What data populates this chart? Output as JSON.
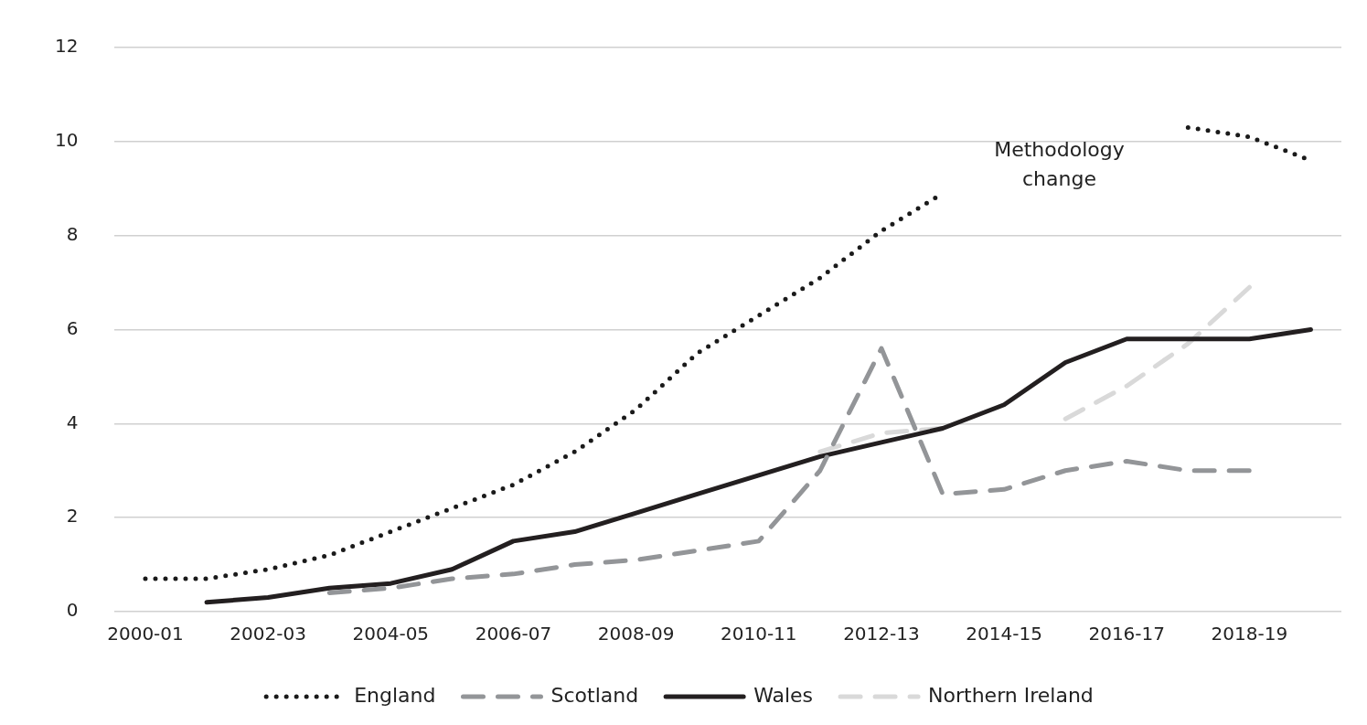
{
  "chart_data": {
    "type": "line",
    "categories": [
      "2000-01",
      null,
      "2002-03",
      null,
      "2004-05",
      null,
      "2006-07",
      null,
      "2008-09",
      null,
      "2010-11",
      null,
      "2012-13",
      null,
      "2014-15",
      null,
      "2016-17",
      null,
      "2018-19",
      null
    ],
    "series": [
      {
        "name": "England",
        "color": "#1a1a1a",
        "line_style": "dotted",
        "values": [
          0.7,
          0.7,
          0.9,
          1.2,
          1.7,
          2.2,
          2.7,
          3.4,
          4.3,
          5.5,
          6.3,
          7.1,
          8.1,
          8.9,
          null,
          null,
          null,
          10.3,
          10.1,
          9.6
        ]
      },
      {
        "name": "Scotland",
        "color": "#939598",
        "line_style": "dashed",
        "values": [
          null,
          null,
          null,
          0.4,
          0.5,
          0.7,
          0.8,
          1.0,
          1.1,
          1.3,
          1.5,
          3.0,
          5.6,
          2.5,
          2.6,
          3.0,
          3.2,
          3.0,
          3.0,
          null
        ]
      },
      {
        "name": "Wales",
        "color": "#231f20",
        "line_style": "solid",
        "values": [
          null,
          0.2,
          0.3,
          0.5,
          0.6,
          0.9,
          1.5,
          1.7,
          2.1,
          2.5,
          2.9,
          3.3,
          3.6,
          3.9,
          4.4,
          5.3,
          5.8,
          5.8,
          5.8,
          6.0
        ]
      },
      {
        "name": "Northern Ireland",
        "color": "#d9d9d9",
        "line_style": "dashed",
        "values": [
          null,
          null,
          null,
          null,
          null,
          null,
          null,
          null,
          null,
          null,
          null,
          3.4,
          3.8,
          3.9,
          null,
          4.1,
          4.8,
          5.7,
          6.9,
          null
        ]
      }
    ],
    "ylim": [
      0,
      12
    ],
    "yticks": [
      0,
      2,
      4,
      6,
      8,
      10,
      12
    ],
    "grid": "y",
    "legend": "bottom",
    "marker": "none",
    "annotations": [
      "Methodology change"
    ]
  }
}
